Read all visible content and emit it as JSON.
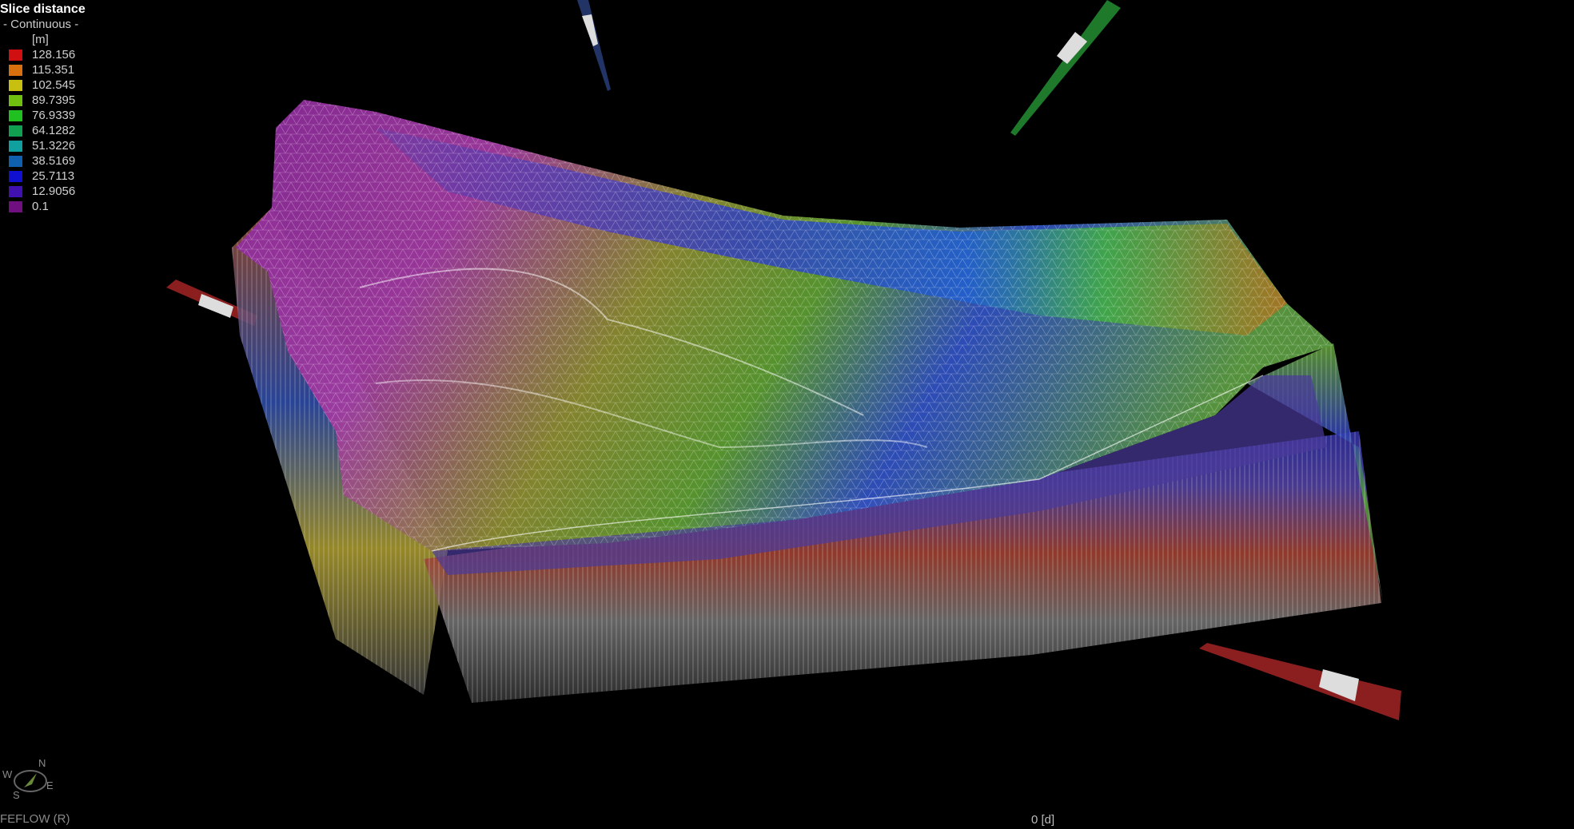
{
  "legend": {
    "title": "Slice distance",
    "mode": "- Continuous -",
    "unit": "[m]",
    "entries": [
      {
        "value": "128.156",
        "color": "#d01010"
      },
      {
        "value": "115.351",
        "color": "#d87010"
      },
      {
        "value": "102.545",
        "color": "#c8c010"
      },
      {
        "value": "89.7395",
        "color": "#70c010"
      },
      {
        "value": "76.9339",
        "color": "#20c020"
      },
      {
        "value": "64.1282",
        "color": "#10a050"
      },
      {
        "value": "51.3226",
        "color": "#10a0a0"
      },
      {
        "value": "38.5169",
        "color": "#1060b0"
      },
      {
        "value": "25.7113",
        "color": "#1010d0"
      },
      {
        "value": "12.9056",
        "color": "#4010b0"
      },
      {
        "value": "0.1",
        "color": "#701080"
      }
    ]
  },
  "compass": {
    "n": "N",
    "s": "S",
    "e": "E",
    "w": "W"
  },
  "footer": {
    "app": "FEFLOW (R)",
    "time": "0 [d]"
  }
}
